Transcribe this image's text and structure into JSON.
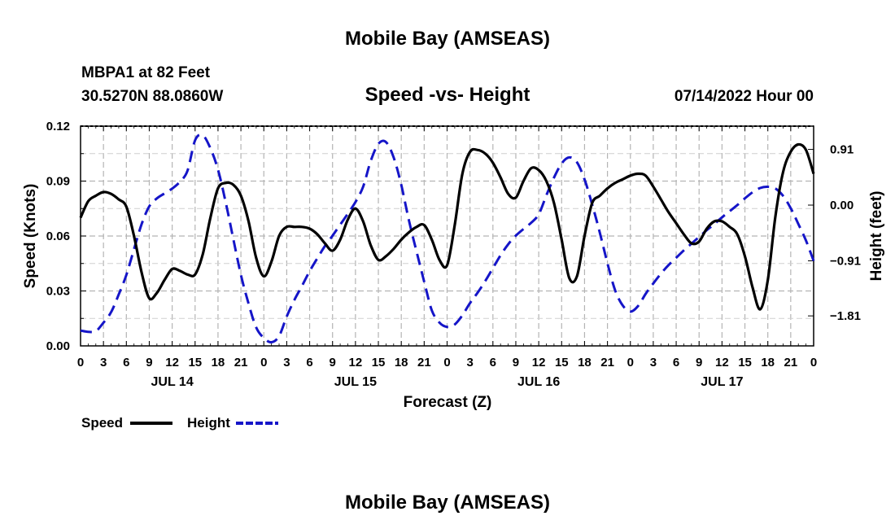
{
  "main_title": "Mobile Bay (AMSEAS)",
  "footer_title": "Mobile Bay (AMSEAS)",
  "station": {
    "name": "MBPA1 at 82 Feet",
    "coords": "30.5270N  88.0860W"
  },
  "timestamp": "07/14/2022 Hour 00",
  "chart_data": {
    "type": "line",
    "title": "Speed -vs- Height",
    "xlabel": "Forecast (Z)",
    "ylabel_left": "Speed (Knots)",
    "ylabel_right": "Height (feet)",
    "x_unit": "hours from 07/14/2022 00Z",
    "xlim": [
      0,
      96
    ],
    "ylim_left": [
      0,
      0.12
    ],
    "ylim_right": [
      -2.3,
      1.29
    ],
    "grid": true,
    "legend_position": "bottom-left",
    "x_ticks": [
      {
        "h": 0,
        "label": "0"
      },
      {
        "h": 3,
        "label": "3"
      },
      {
        "h": 6,
        "label": "6"
      },
      {
        "h": 9,
        "label": "9"
      },
      {
        "h": 12,
        "label": "12"
      },
      {
        "h": 15,
        "label": "15"
      },
      {
        "h": 18,
        "label": "18"
      },
      {
        "h": 21,
        "label": "21"
      },
      {
        "h": 24,
        "label": "0"
      },
      {
        "h": 27,
        "label": "3"
      },
      {
        "h": 30,
        "label": "6"
      },
      {
        "h": 33,
        "label": "9"
      },
      {
        "h": 36,
        "label": "12"
      },
      {
        "h": 39,
        "label": "15"
      },
      {
        "h": 42,
        "label": "18"
      },
      {
        "h": 45,
        "label": "21"
      },
      {
        "h": 48,
        "label": "0"
      },
      {
        "h": 51,
        "label": "3"
      },
      {
        "h": 54,
        "label": "6"
      },
      {
        "h": 57,
        "label": "9"
      },
      {
        "h": 60,
        "label": "12"
      },
      {
        "h": 63,
        "label": "15"
      },
      {
        "h": 66,
        "label": "18"
      },
      {
        "h": 69,
        "label": "21"
      },
      {
        "h": 72,
        "label": "0"
      },
      {
        "h": 75,
        "label": "3"
      },
      {
        "h": 78,
        "label": "6"
      },
      {
        "h": 81,
        "label": "9"
      },
      {
        "h": 84,
        "label": "12"
      },
      {
        "h": 87,
        "label": "15"
      },
      {
        "h": 90,
        "label": "18"
      },
      {
        "h": 93,
        "label": "21"
      },
      {
        "h": 96,
        "label": "0"
      }
    ],
    "day_labels": [
      {
        "h": 12,
        "label": "JUL 14"
      },
      {
        "h": 36,
        "label": "JUL 15"
      },
      {
        "h": 60,
        "label": "JUL 16"
      },
      {
        "h": 84,
        "label": "JUL 17"
      }
    ],
    "y_left_ticks": [
      {
        "v": 0.0,
        "label": "0.00"
      },
      {
        "v": 0.03,
        "label": "0.03"
      },
      {
        "v": 0.06,
        "label": "0.06"
      },
      {
        "v": 0.09,
        "label": "0.09"
      },
      {
        "v": 0.12,
        "label": "0.12"
      }
    ],
    "y_right_ticks": [
      {
        "v": 0.91,
        "label": "0.91"
      },
      {
        "v": 0.0,
        "label": "0.00"
      },
      {
        "v": -0.91,
        "label": "−0.91"
      },
      {
        "v": -1.81,
        "label": "−1.81"
      }
    ],
    "series": [
      {
        "name": "Speed",
        "axis": "left",
        "color": "#000000",
        "dash": "solid",
        "x": [
          0,
          1,
          2,
          3,
          4,
          5,
          6,
          7,
          8,
          9,
          10,
          11,
          12,
          13,
          14,
          15,
          16,
          17,
          18,
          19,
          20,
          21,
          22,
          23,
          24,
          25,
          26,
          27,
          28,
          29,
          30,
          31,
          32,
          33,
          34,
          35,
          36,
          37,
          38,
          39,
          40,
          41,
          42,
          43,
          44,
          45,
          46,
          47,
          48,
          49,
          50,
          51,
          52,
          53,
          54,
          55,
          56,
          57,
          58,
          59,
          60,
          61,
          62,
          63,
          64,
          65,
          66,
          67,
          68,
          69,
          70,
          71,
          72,
          73,
          74,
          75,
          76,
          77,
          78,
          79,
          80,
          81,
          82,
          83,
          84,
          85,
          86,
          87,
          88,
          89,
          90,
          91,
          92,
          93,
          94,
          95,
          96
        ],
        "values": [
          0.07,
          0.079,
          0.082,
          0.084,
          0.083,
          0.08,
          0.076,
          0.06,
          0.04,
          0.026,
          0.029,
          0.036,
          0.042,
          0.041,
          0.039,
          0.039,
          0.05,
          0.07,
          0.086,
          0.089,
          0.088,
          0.082,
          0.068,
          0.048,
          0.038,
          0.046,
          0.06,
          0.065,
          0.065,
          0.065,
          0.064,
          0.061,
          0.056,
          0.052,
          0.058,
          0.069,
          0.075,
          0.068,
          0.055,
          0.047,
          0.049,
          0.053,
          0.058,
          0.062,
          0.065,
          0.066,
          0.058,
          0.047,
          0.044,
          0.066,
          0.094,
          0.106,
          0.107,
          0.105,
          0.1,
          0.092,
          0.083,
          0.081,
          0.09,
          0.097,
          0.096,
          0.09,
          0.078,
          0.058,
          0.037,
          0.038,
          0.06,
          0.078,
          0.082,
          0.086,
          0.089,
          0.091,
          0.093,
          0.094,
          0.093,
          0.087,
          0.08,
          0.073,
          0.067,
          0.061,
          0.056,
          0.057,
          0.064,
          0.068,
          0.068,
          0.065,
          0.061,
          0.049,
          0.032,
          0.02,
          0.036,
          0.071,
          0.095,
          0.106,
          0.11,
          0.107,
          0.094
        ]
      },
      {
        "name": "Height",
        "axis": "right",
        "color": "#1515c8",
        "dash": "dashed",
        "x": [
          0,
          1,
          2,
          3,
          4,
          5,
          6,
          7,
          8,
          9,
          10,
          11,
          12,
          13,
          14,
          15,
          16,
          17,
          18,
          19,
          20,
          21,
          22,
          23,
          24,
          25,
          26,
          27,
          28,
          29,
          30,
          31,
          32,
          33,
          34,
          35,
          36,
          37,
          38,
          39,
          40,
          41,
          42,
          43,
          44,
          45,
          46,
          47,
          48,
          49,
          50,
          51,
          52,
          53,
          54,
          55,
          56,
          57,
          58,
          59,
          60,
          61,
          62,
          63,
          64,
          65,
          66,
          67,
          68,
          69,
          70,
          71,
          72,
          73,
          74,
          75,
          76,
          77,
          78,
          79,
          80,
          81,
          82,
          83,
          84,
          85,
          86,
          87,
          88,
          89,
          90,
          91,
          92,
          93,
          94,
          95,
          96
        ],
        "values": [
          -2.05,
          -2.07,
          -2.06,
          -1.92,
          -1.75,
          -1.46,
          -1.14,
          -0.72,
          -0.31,
          -0.02,
          0.11,
          0.19,
          0.27,
          0.38,
          0.56,
          1.06,
          1.14,
          0.93,
          0.58,
          0.05,
          -0.55,
          -1.14,
          -1.61,
          -2.0,
          -2.17,
          -2.24,
          -2.14,
          -1.82,
          -1.55,
          -1.32,
          -1.08,
          -0.87,
          -0.67,
          -0.5,
          -0.32,
          -0.14,
          0.05,
          0.3,
          0.72,
          1.0,
          1.03,
          0.78,
          0.33,
          -0.25,
          -0.76,
          -1.25,
          -1.72,
          -1.92,
          -1.99,
          -1.95,
          -1.8,
          -1.6,
          -1.43,
          -1.24,
          -1.03,
          -0.82,
          -0.64,
          -0.5,
          -0.39,
          -0.29,
          -0.15,
          0.16,
          0.45,
          0.68,
          0.78,
          0.7,
          0.42,
          0.01,
          -0.45,
          -0.95,
          -1.39,
          -1.64,
          -1.74,
          -1.65,
          -1.45,
          -1.28,
          -1.12,
          -0.98,
          -0.86,
          -0.74,
          -0.63,
          -0.52,
          -0.41,
          -0.31,
          -0.2,
          -0.1,
          0.0,
          0.11,
          0.21,
          0.28,
          0.3,
          0.27,
          0.15,
          -0.05,
          -0.31,
          -0.58,
          -0.91
        ]
      }
    ],
    "legend": [
      {
        "label": "Speed",
        "color": "#000000",
        "dash": "solid"
      },
      {
        "label": "Height",
        "color": "#1515c8",
        "dash": "dashed"
      }
    ]
  }
}
